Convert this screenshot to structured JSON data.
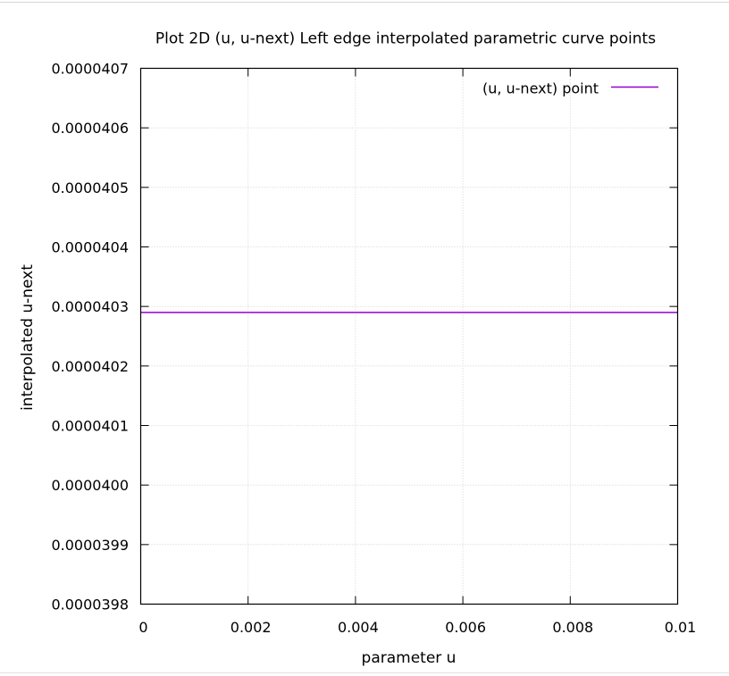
{
  "chart_data": {
    "type": "line",
    "title": "Plot 2D (u, u-next) Left edge interpolated parametric curve points",
    "xlabel": "parameter u",
    "ylabel": "interpolated u-next",
    "xlim": [
      0,
      0.01
    ],
    "ylim": [
      3.98e-05,
      4.07e-05
    ],
    "x_ticks": [
      "0",
      "0.002",
      "0.004",
      "0.006",
      "0.008",
      "0.01"
    ],
    "y_ticks": [
      "0.0000398",
      "0.0000399",
      "0.0000400",
      "0.0000401",
      "0.0000402",
      "0.0000403",
      "0.0000404",
      "0.0000405",
      "0.0000406",
      "0.0000407"
    ],
    "grid": true,
    "legend_position": "top-right",
    "series": [
      {
        "name": "(u, u-next) point",
        "color": "#9400d3",
        "x": [
          0,
          0.01
        ],
        "y": [
          4.029e-05,
          4.029e-05
        ]
      }
    ]
  }
}
